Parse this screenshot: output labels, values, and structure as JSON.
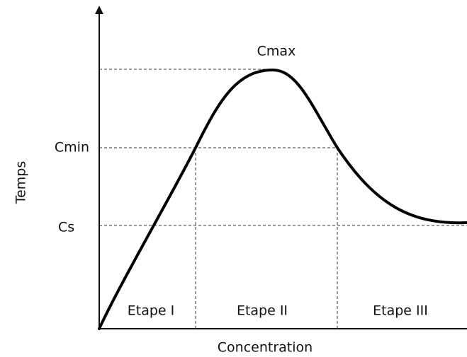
{
  "axes": {
    "y_label": "Temps",
    "x_label": "Concentration"
  },
  "levels": {
    "cmax": "Cmax",
    "cmin": "Cmin",
    "cs": "Cs"
  },
  "stages": [
    "Etape I",
    "Etape II",
    "Etape III"
  ]
}
